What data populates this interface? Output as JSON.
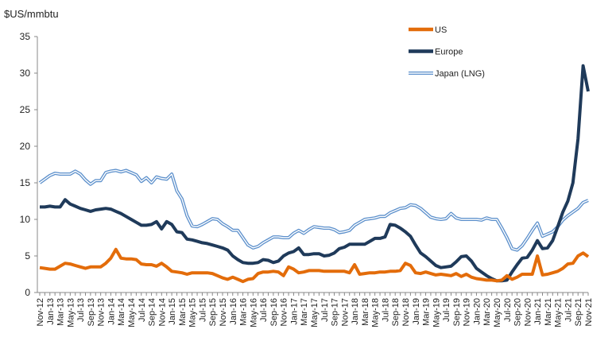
{
  "chart_data": {
    "type": "line",
    "title": "",
    "ylabel": "$US/mmbtu",
    "xlabel": "",
    "ylim": [
      0,
      35
    ],
    "yticks": [
      0,
      5,
      10,
      15,
      20,
      25,
      30,
      35
    ],
    "grid": false,
    "legend_position": "top-right",
    "x_frequency": "monthly",
    "x_tick_labels": [
      "Nov-12",
      "Jan-13",
      "Mar-13",
      "May-13",
      "Jul-13",
      "Sep-13",
      "Nov-13",
      "Jan-14",
      "Mar-14",
      "May-14",
      "Jul-14",
      "Sep-14",
      "Nov-14",
      "Jan-15",
      "Mar-15",
      "May-15",
      "Jul-15",
      "Sep-15",
      "Nov-15",
      "Jan-16",
      "Mar-16",
      "May-16",
      "Jul-16",
      "Sep-16",
      "Nov-16",
      "Jan-17",
      "Mar-17",
      "May-17",
      "Jul-17",
      "Sep-17",
      "Nov-17",
      "Jan-18",
      "Mar-18",
      "May-18",
      "Jul-18",
      "Sep-18",
      "Nov-18",
      "Jan-19",
      "Mar-19",
      "May-19",
      "Jul-19",
      "Sep-19",
      "Nov-19",
      "Jan-20",
      "Mar-20",
      "May-20",
      "Jul-20",
      "Sep-20",
      "Nov-20",
      "Jan-21",
      "Mar-21",
      "May-21",
      "Jul-21",
      "Sep-21",
      "Nov-21"
    ],
    "series": [
      {
        "name": "US",
        "color": "#E36C0A",
        "style": "solid",
        "values": [
          3.4,
          3.3,
          3.2,
          3.2,
          3.6,
          4.0,
          3.9,
          3.7,
          3.5,
          3.3,
          3.5,
          3.5,
          3.5,
          4.0,
          4.7,
          5.9,
          4.7,
          4.6,
          4.6,
          4.5,
          3.9,
          3.8,
          3.8,
          3.6,
          4.0,
          3.5,
          2.9,
          2.8,
          2.7,
          2.5,
          2.7,
          2.7,
          2.7,
          2.7,
          2.6,
          2.3,
          2.0,
          1.8,
          2.1,
          1.8,
          1.5,
          1.8,
          1.9,
          2.6,
          2.8,
          2.8,
          2.9,
          2.8,
          2.3,
          3.5,
          3.2,
          2.7,
          2.8,
          3.0,
          3.0,
          3.0,
          2.9,
          2.9,
          2.9,
          2.9,
          2.9,
          2.7,
          3.8,
          2.5,
          2.6,
          2.7,
          2.7,
          2.8,
          2.8,
          2.9,
          2.9,
          3.0,
          4.0,
          3.7,
          2.7,
          2.6,
          2.8,
          2.6,
          2.4,
          2.5,
          2.4,
          2.3,
          2.6,
          2.2,
          2.5,
          2.1,
          1.9,
          1.8,
          1.7,
          1.7,
          1.6,
          1.7,
          2.3,
          1.8,
          2.1,
          2.5,
          2.5,
          2.5,
          5.0,
          2.4,
          2.5,
          2.7,
          2.9,
          3.3,
          3.9,
          4.0,
          5.0,
          5.4,
          4.9
        ]
      },
      {
        "name": "Europe",
        "color": "#1F3A5A",
        "style": "solid",
        "values": [
          11.7,
          11.7,
          11.8,
          11.7,
          11.7,
          12.7,
          12.1,
          11.8,
          11.5,
          11.3,
          11.1,
          11.3,
          11.4,
          11.5,
          11.4,
          11.1,
          10.8,
          10.4,
          10.0,
          9.6,
          9.2,
          9.2,
          9.3,
          9.7,
          8.7,
          9.7,
          9.3,
          8.3,
          8.2,
          7.3,
          7.2,
          7.0,
          6.8,
          6.7,
          6.5,
          6.3,
          6.1,
          5.8,
          5.0,
          4.5,
          4.1,
          4.0,
          4.0,
          4.1,
          4.5,
          4.4,
          4.1,
          4.3,
          5.0,
          5.4,
          5.6,
          6.1,
          5.2,
          5.2,
          5.3,
          5.3,
          5.0,
          5.1,
          5.4,
          6.0,
          6.2,
          6.6,
          6.6,
          6.6,
          6.6,
          7.0,
          7.4,
          7.4,
          7.6,
          9.3,
          9.2,
          8.8,
          8.3,
          7.7,
          6.5,
          5.4,
          4.9,
          4.3,
          3.7,
          3.4,
          3.5,
          3.6,
          4.2,
          4.9,
          5.0,
          4.3,
          3.3,
          2.8,
          2.3,
          1.9,
          1.6,
          1.6,
          1.7,
          2.8,
          3.8,
          4.7,
          4.8,
          5.8,
          7.1,
          6.0,
          6.1,
          7.1,
          9.0,
          11.0,
          12.5,
          15.0,
          21.0,
          31.0,
          27.5
        ]
      },
      {
        "name": "Japan (LNG)",
        "color": "#5B8FCB",
        "style": "double",
        "values": [
          15.0,
          15.5,
          16.0,
          16.3,
          16.2,
          16.2,
          16.2,
          16.6,
          16.2,
          15.4,
          14.8,
          15.3,
          15.3,
          16.4,
          16.6,
          16.7,
          16.5,
          16.7,
          16.4,
          16.1,
          15.2,
          15.7,
          15.0,
          15.8,
          15.6,
          15.5,
          16.2,
          13.9,
          12.8,
          10.5,
          9.1,
          9.0,
          9.3,
          9.7,
          10.1,
          10.0,
          9.4,
          9.0,
          8.5,
          8.5,
          7.5,
          6.5,
          6.1,
          6.3,
          6.8,
          7.2,
          7.6,
          7.6,
          7.5,
          7.5,
          8.1,
          8.5,
          8.1,
          8.6,
          9.0,
          8.9,
          8.8,
          8.8,
          8.6,
          8.2,
          8.3,
          8.5,
          9.2,
          9.6,
          10.0,
          10.1,
          10.2,
          10.4,
          10.4,
          10.9,
          11.2,
          11.5,
          11.6,
          12.0,
          11.9,
          11.5,
          10.9,
          10.3,
          10.1,
          10.0,
          10.1,
          10.8,
          10.2,
          10.0,
          10.0,
          10.0,
          10.0,
          9.9,
          10.2,
          10.0,
          10.0,
          8.8,
          7.5,
          6.0,
          5.8,
          6.4,
          7.4,
          8.5,
          9.5,
          7.7,
          8.0,
          8.3,
          9.0,
          9.9,
          10.5,
          11.0,
          11.5,
          12.3,
          12.6
        ]
      }
    ]
  }
}
